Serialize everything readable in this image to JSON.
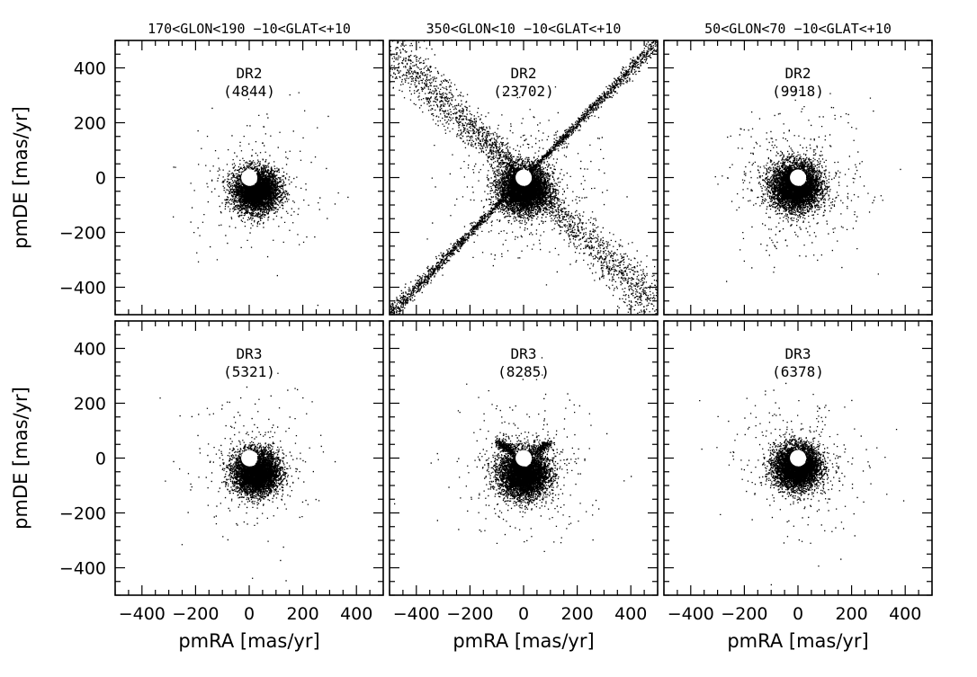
{
  "chart_data": {
    "type": "scatter",
    "layout": {
      "rows": 2,
      "cols": 3
    },
    "x_axis": {
      "label": "pmRA [mas/yr]",
      "range": [
        -500,
        500
      ],
      "ticks": [
        -400,
        -200,
        0,
        200,
        400
      ],
      "tick_labels": [
        "−400",
        "−200",
        "0",
        "200",
        "400"
      ]
    },
    "y_axis": {
      "label": "pmDE [mas/yr]",
      "range": [
        -500,
        500
      ],
      "ticks": [
        -400,
        -200,
        0,
        200,
        400
      ],
      "tick_labels": [
        "−400",
        "−200",
        "0",
        "200",
        "400"
      ]
    },
    "column_titles": [
      "170<GLON<190  −10<GLAT<+10",
      "350<GLON<10  −10<GLAT<+10",
      "50<GLON<70  −10<GLAT<+10"
    ],
    "grid": false,
    "excluded_circle_radius": 30,
    "panels": [
      {
        "row": 0,
        "col": 0,
        "release": "DR2",
        "count": "(4844)",
        "n": 4844,
        "dense_center": [
          25,
          -45
        ],
        "spread": 55,
        "sparse_points": 250,
        "cross": false
      },
      {
        "row": 0,
        "col": 1,
        "release": "DR2",
        "count": "(23702)",
        "n": 23702,
        "dense_center": [
          0,
          -40
        ],
        "spread": 60,
        "sparse_points": 600,
        "cross": true,
        "cross_slope": -0.95
      },
      {
        "row": 0,
        "col": 2,
        "release": "DR2",
        "count": "(9918)",
        "n": 9918,
        "dense_center": [
          -10,
          -30
        ],
        "spread": 60,
        "sparse_points": 500,
        "cross": false
      },
      {
        "row": 1,
        "col": 0,
        "release": "DR3",
        "count": "(5321)",
        "n": 5321,
        "dense_center": [
          25,
          -50
        ],
        "spread": 55,
        "sparse_points": 280,
        "cross": false
      },
      {
        "row": 1,
        "col": 1,
        "release": "DR3",
        "count": "(8285)",
        "n": 8285,
        "dense_center": [
          0,
          -55
        ],
        "spread": 60,
        "sparse_points": 450,
        "cross": false,
        "stub_cross": true
      },
      {
        "row": 1,
        "col": 2,
        "release": "DR3",
        "count": "(6378)",
        "n": 6378,
        "dense_center": [
          -5,
          -30
        ],
        "spread": 55,
        "sparse_points": 380,
        "cross": false
      }
    ]
  }
}
